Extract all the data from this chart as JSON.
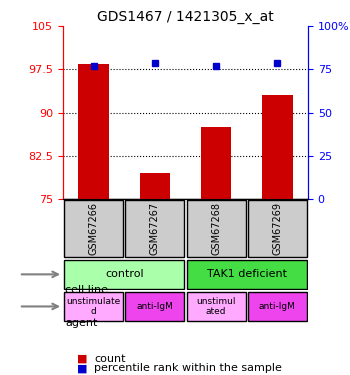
{
  "title": "GDS1467 / 1421305_x_at",
  "samples": [
    "GSM67266",
    "GSM67267",
    "GSM67268",
    "GSM67269"
  ],
  "bar_values": [
    98.5,
    79.5,
    87.5,
    93.0
  ],
  "percentile_values": [
    77,
    79,
    77,
    79
  ],
  "ylim_left": [
    75,
    105
  ],
  "ylim_right": [
    0,
    100
  ],
  "yticks_left": [
    75,
    82.5,
    90,
    97.5,
    105
  ],
  "yticks_right": [
    0,
    25,
    50,
    75,
    100
  ],
  "ytick_labels_left": [
    "75",
    "82.5",
    "90",
    "97.5",
    "105"
  ],
  "ytick_labels_right": [
    "0",
    "25",
    "50",
    "75",
    "100%"
  ],
  "bar_color": "#cc0000",
  "dot_color": "#0000cc",
  "cell_line_labels": [
    "control",
    "TAK1 deficient"
  ],
  "cell_line_spans": [
    [
      0,
      2
    ],
    [
      2,
      4
    ]
  ],
  "cell_line_colors": [
    "#aaffaa",
    "#44dd44"
  ],
  "agent_labels": [
    "unstimulate\nd",
    "anti-IgM",
    "unstimul\nated",
    "anti-IgM"
  ],
  "agent_colors": [
    "#ffaaff",
    "#ee44ee",
    "#ffaaff",
    "#ee44ee"
  ],
  "legend_count_color": "#cc0000",
  "legend_percentile_color": "#0000cc",
  "grid_dotted_values": [
    82.5,
    90,
    97.5
  ]
}
